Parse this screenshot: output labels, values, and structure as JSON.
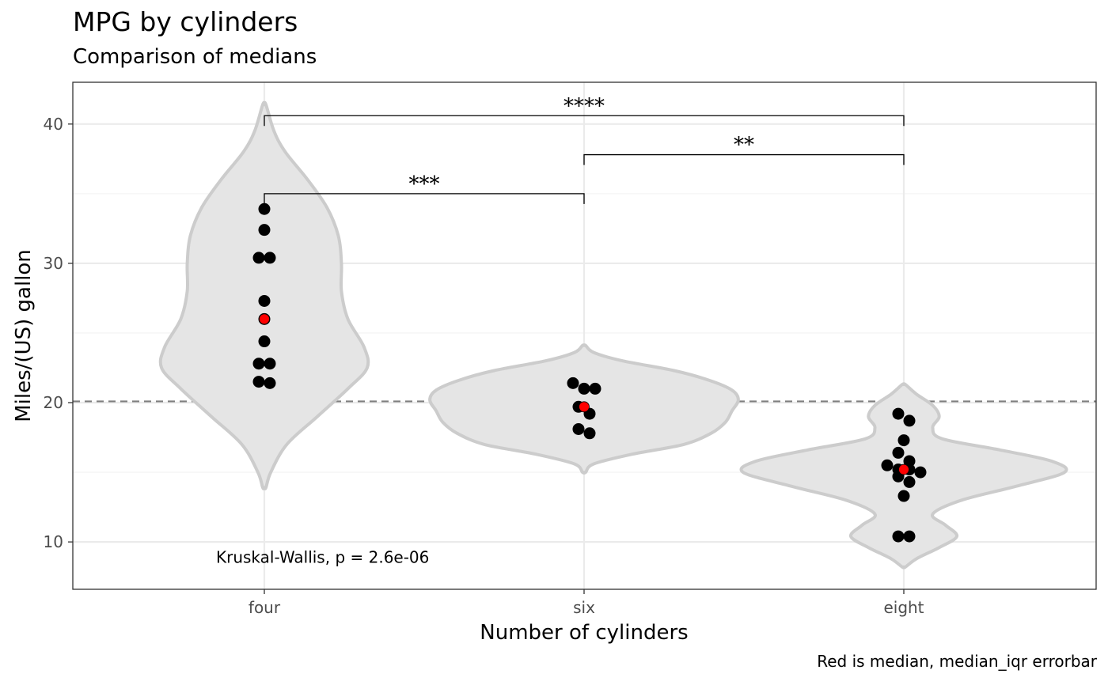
{
  "title": "MPG by cylinders",
  "subtitle": "Comparison of medians",
  "caption": "Red is median, median_iqr errorbar",
  "chart_data": {
    "type": "violin",
    "title": "MPG by cylinders",
    "subtitle": "Comparison of medians",
    "xlabel": "Number of cylinders",
    "ylabel": "Miles/(US) gallon",
    "categories": [
      "four",
      "six",
      "eight"
    ],
    "ylim": [
      6.6,
      43.0
    ],
    "y_ticks": [
      10,
      20,
      30,
      40
    ],
    "grid": true,
    "reference_line": {
      "y": 20.09,
      "style": "dashed"
    },
    "groups": [
      {
        "name": "four",
        "points": [
          33.9,
          32.4,
          30.4,
          30.4,
          27.3,
          26.0,
          24.4,
          22.8,
          22.8,
          21.5,
          21.4
        ],
        "median": 26.0,
        "violin_range": [
          13.9,
          41.4
        ],
        "density_profile": [
          [
            13.9,
            0.01
          ],
          [
            15.0,
            0.04
          ],
          [
            17.0,
            0.14
          ],
          [
            19.0,
            0.33
          ],
          [
            21.0,
            0.52
          ],
          [
            22.5,
            0.64
          ],
          [
            24.0,
            0.62
          ],
          [
            26.0,
            0.52
          ],
          [
            28.0,
            0.48
          ],
          [
            30.0,
            0.48
          ],
          [
            32.0,
            0.46
          ],
          [
            34.0,
            0.39
          ],
          [
            36.0,
            0.27
          ],
          [
            38.0,
            0.13
          ],
          [
            39.5,
            0.06
          ],
          [
            41.4,
            0.01
          ]
        ]
      },
      {
        "name": "six",
        "points": [
          21.4,
          21.0,
          21.0,
          19.7,
          19.2,
          18.1,
          17.8
        ],
        "median": 19.7,
        "violin_range": [
          15.0,
          24.1
        ],
        "density_profile": [
          [
            15.0,
            0.01
          ],
          [
            15.6,
            0.06
          ],
          [
            16.3,
            0.3
          ],
          [
            17.0,
            0.62
          ],
          [
            17.8,
            0.79
          ],
          [
            18.6,
            0.88
          ],
          [
            19.4,
            0.92
          ],
          [
            20.2,
            0.96
          ],
          [
            20.9,
            0.92
          ],
          [
            21.6,
            0.78
          ],
          [
            22.3,
            0.56
          ],
          [
            23.0,
            0.24
          ],
          [
            23.6,
            0.06
          ],
          [
            24.1,
            0.01
          ]
        ]
      },
      {
        "name": "eight",
        "points": [
          19.2,
          18.7,
          17.3,
          16.4,
          15.8,
          15.5,
          15.2,
          15.2,
          15.0,
          14.7,
          14.3,
          13.3,
          10.4,
          10.4
        ],
        "median": 15.2,
        "violin_range": [
          8.2,
          21.3
        ],
        "density_profile": [
          [
            8.2,
            0.01
          ],
          [
            8.8,
            0.08
          ],
          [
            9.6,
            0.22
          ],
          [
            10.4,
            0.33
          ],
          [
            11.2,
            0.26
          ],
          [
            12.0,
            0.18
          ],
          [
            13.0,
            0.36
          ],
          [
            14.0,
            0.7
          ],
          [
            15.0,
            1.0
          ],
          [
            15.8,
            0.92
          ],
          [
            16.6,
            0.6
          ],
          [
            17.4,
            0.24
          ],
          [
            18.2,
            0.18
          ],
          [
            19.0,
            0.22
          ],
          [
            19.8,
            0.18
          ],
          [
            20.6,
            0.08
          ],
          [
            21.3,
            0.01
          ]
        ]
      }
    ],
    "comparisons": [
      {
        "from": "four",
        "to": "six",
        "y": 35.0,
        "label": "***"
      },
      {
        "from": "six",
        "to": "eight",
        "y": 37.8,
        "label": "**"
      },
      {
        "from": "four",
        "to": "eight",
        "y": 40.6,
        "label": "****"
      }
    ],
    "test_annotation": {
      "label": "Kruskal-Wallis, p = 2.6e-06",
      "x_category": "four",
      "y": 8.9
    },
    "colors": {
      "violin_fill": "#e5e5e5",
      "violin_outline": "#cccccc",
      "point": "#000000",
      "median_point": "#ff0000",
      "grid_major": "#ebebeb",
      "grid_minor": "#f2f2f2",
      "reference_line": "#7f7f7f",
      "panel_border": "#333333"
    }
  }
}
